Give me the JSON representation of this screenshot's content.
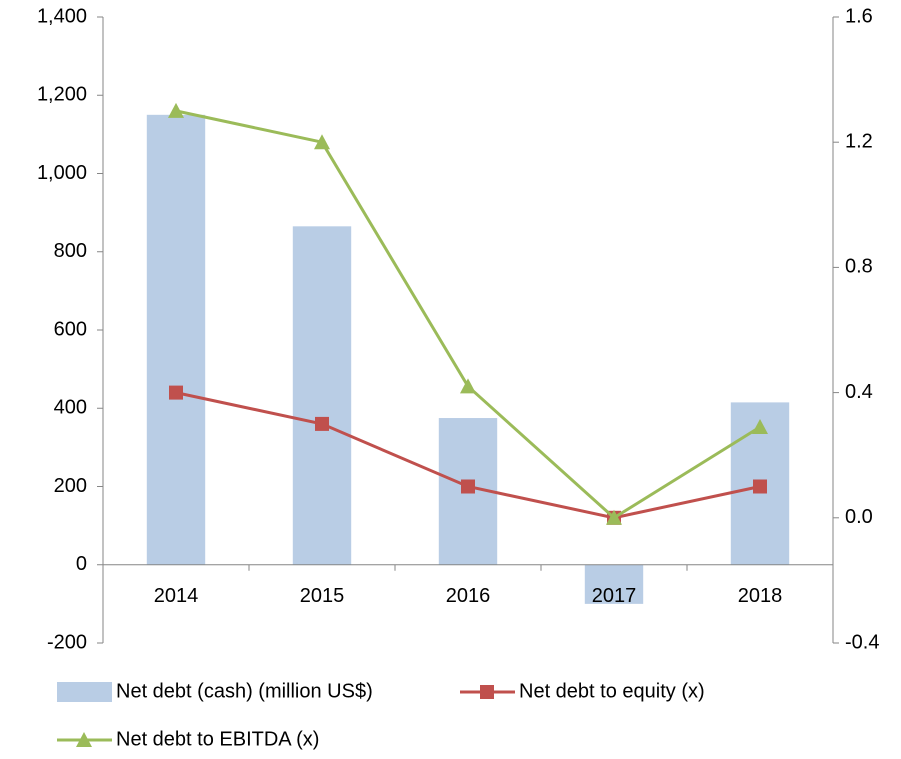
{
  "chart_data": {
    "type": "bar_line",
    "categories": [
      "2014",
      "2015",
      "2016",
      "2017",
      "2018"
    ],
    "series": [
      {
        "name": "Net debt (cash) (million US$)",
        "type": "bar",
        "color": "#b9cde5",
        "axis": "y",
        "values": [
          1150,
          865,
          375,
          -100,
          415
        ]
      },
      {
        "name": "Net debt to equity (x)",
        "type": "line",
        "marker": "square",
        "color": "#c0504d",
        "axis": "y2",
        "values": [
          0.4,
          0.3,
          0.1,
          0,
          0.1
        ]
      },
      {
        "name": "Net debt to EBITDA (x)",
        "type": "line",
        "marker": "triangle",
        "color": "#9bbb59",
        "axis": "y2",
        "values": [
          1.3,
          1.2,
          0.42,
          0,
          0.29
        ]
      }
    ],
    "ylim": [
      -200,
      1400
    ],
    "yticks": [
      -200,
      0,
      200,
      400,
      600,
      800,
      {
        "value": 1000,
        "label": "1,000"
      },
      {
        "value": 1200,
        "label": "1,200"
      },
      {
        "value": 1400,
        "label": "1,400"
      }
    ],
    "y2lim": [
      -0.4,
      1.6
    ],
    "y2ticks": [
      -0.4,
      {
        "value": 0,
        "label": "0.0"
      },
      0.4,
      0.8,
      1.2,
      1.6
    ],
    "grid": false,
    "legend": "bottom"
  }
}
